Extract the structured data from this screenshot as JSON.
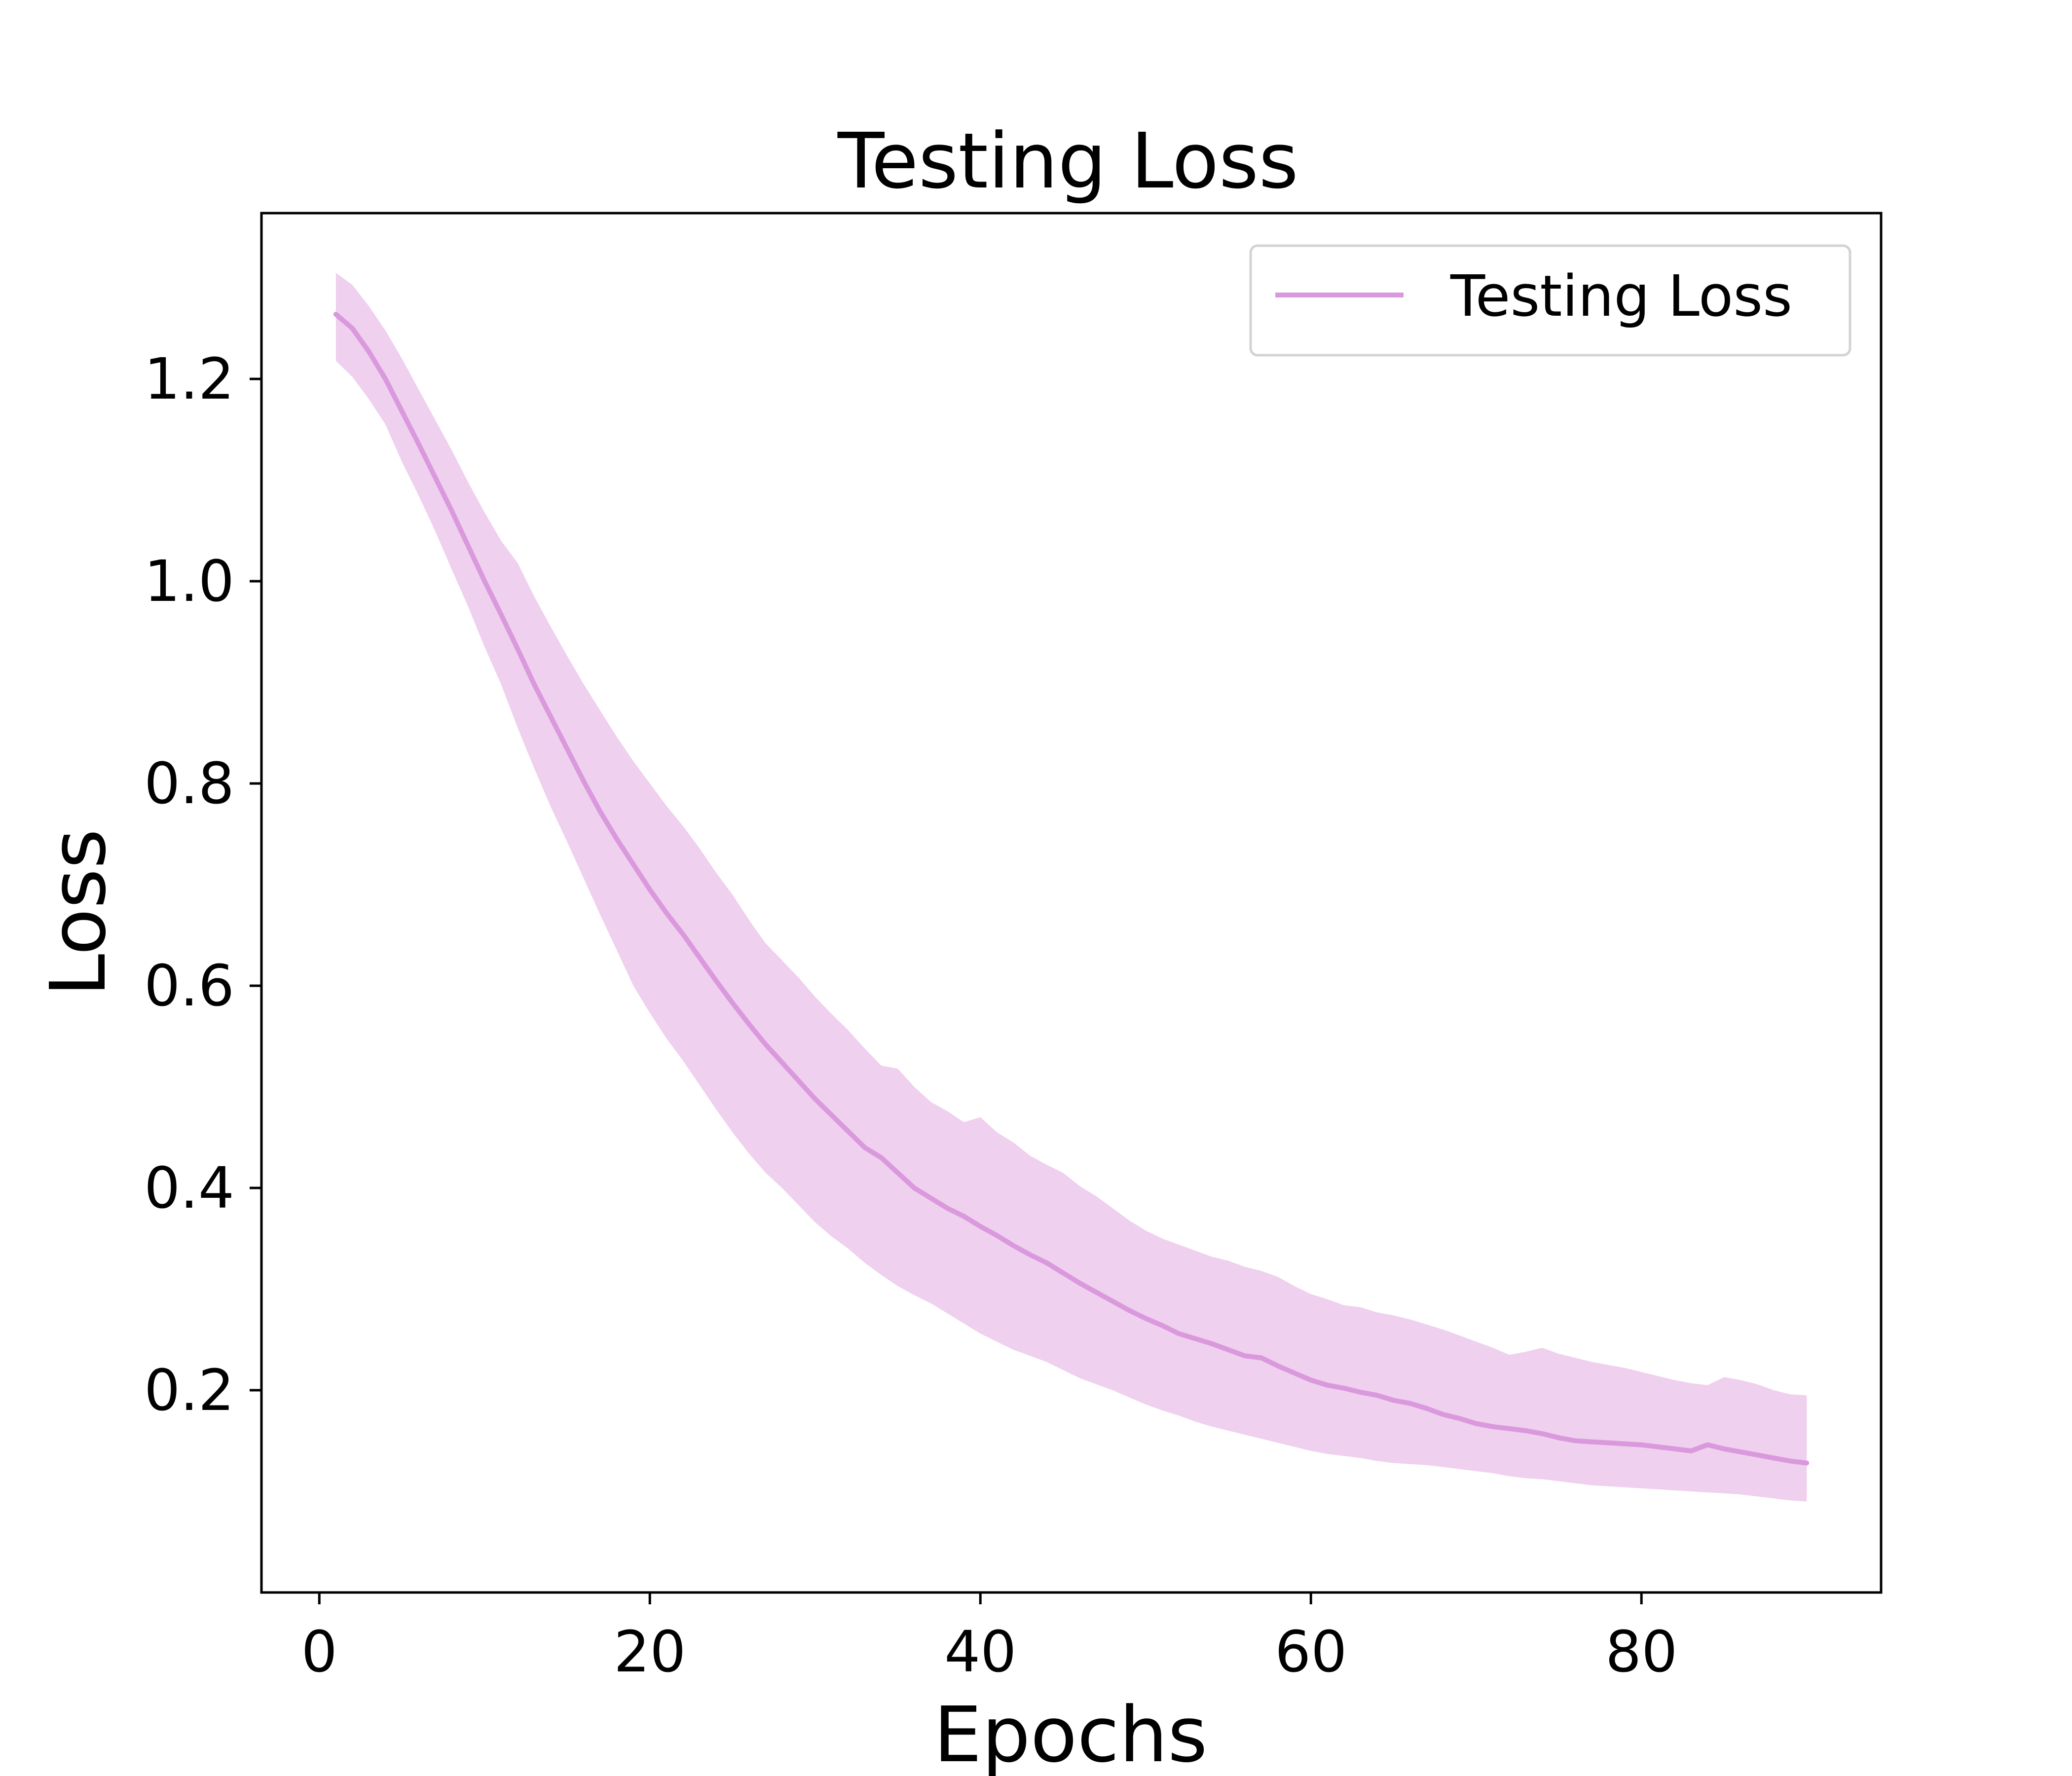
{
  "chart_data": {
    "type": "line",
    "title": "Testing Loss",
    "xlabel": "Epochs",
    "ylabel": "Loss",
    "xlim": [
      -3.5,
      94.5
    ],
    "ylim": [
      0.0,
      1.364
    ],
    "xticks": [
      0,
      20,
      40,
      60,
      80
    ],
    "xtick_labels": [
      "0",
      "20",
      "40",
      "60",
      "80"
    ],
    "yticks": [
      0.2,
      0.4,
      0.6,
      0.8,
      1.0,
      1.2
    ],
    "ytick_labels": [
      "0.2",
      "0.4",
      "0.6",
      "0.8",
      "1.0",
      "1.2"
    ],
    "grid": false,
    "legend": {
      "position": "top-right",
      "entries": [
        "Testing Loss"
      ]
    },
    "colors": {
      "line": "#da99dd",
      "band": "#efd0ee",
      "axes": "#000000",
      "legend_border": "#d3d3d3"
    },
    "series": [
      {
        "name": "Testing Loss",
        "x": [
          1,
          2,
          3,
          4,
          5,
          6,
          7,
          8,
          9,
          10,
          11,
          12,
          13,
          14,
          15,
          16,
          17,
          18,
          19,
          20,
          21,
          22,
          23,
          24,
          25,
          26,
          27,
          28,
          29,
          30,
          31,
          32,
          33,
          34,
          35,
          36,
          37,
          38,
          39,
          40,
          41,
          42,
          43,
          44,
          45,
          46,
          47,
          48,
          49,
          50,
          51,
          52,
          53,
          54,
          55,
          56,
          57,
          58,
          59,
          60,
          61,
          62,
          63,
          64,
          65,
          66,
          67,
          68,
          69,
          70,
          71,
          72,
          73,
          74,
          75,
          76,
          77,
          78,
          79,
          80,
          81,
          82,
          83,
          84,
          85,
          86,
          87,
          88,
          89,
          90
        ],
        "y": [
          1.264,
          1.25,
          1.227,
          1.2,
          1.168,
          1.136,
          1.103,
          1.07,
          1.035,
          1.0,
          0.967,
          0.933,
          0.898,
          0.866,
          0.834,
          0.802,
          0.772,
          0.745,
          0.72,
          0.695,
          0.672,
          0.651,
          0.628,
          0.605,
          0.583,
          0.562,
          0.542,
          0.524,
          0.506,
          0.488,
          0.472,
          0.456,
          0.44,
          0.43,
          0.415,
          0.4,
          0.39,
          0.38,
          0.372,
          0.362,
          0.353,
          0.343,
          0.334,
          0.326,
          0.316,
          0.306,
          0.297,
          0.288,
          0.279,
          0.271,
          0.264,
          0.256,
          0.251,
          0.246,
          0.24,
          0.234,
          0.232,
          0.224,
          0.217,
          0.21,
          0.205,
          0.202,
          0.198,
          0.195,
          0.19,
          0.187,
          0.182,
          0.176,
          0.172,
          0.167,
          0.164,
          0.162,
          0.16,
          0.157,
          0.153,
          0.15,
          0.149,
          0.148,
          0.147,
          0.146,
          0.144,
          0.142,
          0.14,
          0.146,
          0.142,
          0.139,
          0.136,
          0.133,
          0.13,
          0.128
        ],
        "upper": [
          1.305,
          1.293,
          1.272,
          1.248,
          1.22,
          1.19,
          1.16,
          1.13,
          1.098,
          1.068,
          1.04,
          1.018,
          0.985,
          0.955,
          0.926,
          0.898,
          0.872,
          0.846,
          0.822,
          0.8,
          0.778,
          0.758,
          0.736,
          0.712,
          0.69,
          0.665,
          0.642,
          0.625,
          0.608,
          0.589,
          0.572,
          0.556,
          0.538,
          0.521,
          0.518,
          0.5,
          0.485,
          0.476,
          0.465,
          0.47,
          0.455,
          0.445,
          0.432,
          0.423,
          0.415,
          0.402,
          0.392,
          0.38,
          0.368,
          0.358,
          0.35,
          0.344,
          0.338,
          0.332,
          0.328,
          0.322,
          0.318,
          0.312,
          0.303,
          0.295,
          0.29,
          0.284,
          0.282,
          0.277,
          0.274,
          0.27,
          0.265,
          0.26,
          0.254,
          0.248,
          0.242,
          0.235,
          0.238,
          0.242,
          0.236,
          0.232,
          0.228,
          0.225,
          0.222,
          0.218,
          0.214,
          0.21,
          0.207,
          0.205,
          0.213,
          0.21,
          0.206,
          0.2,
          0.196,
          0.195
        ],
        "lower": [
          1.218,
          1.202,
          1.18,
          1.155,
          1.118,
          1.085,
          1.05,
          1.012,
          0.975,
          0.935,
          0.898,
          0.855,
          0.815,
          0.777,
          0.742,
          0.706,
          0.67,
          0.635,
          0.6,
          0.573,
          0.548,
          0.526,
          0.502,
          0.478,
          0.455,
          0.434,
          0.415,
          0.4,
          0.383,
          0.366,
          0.352,
          0.34,
          0.326,
          0.314,
          0.303,
          0.294,
          0.286,
          0.276,
          0.266,
          0.256,
          0.248,
          0.24,
          0.234,
          0.228,
          0.22,
          0.212,
          0.206,
          0.2,
          0.193,
          0.186,
          0.18,
          0.175,
          0.169,
          0.164,
          0.16,
          0.156,
          0.152,
          0.148,
          0.144,
          0.14,
          0.137,
          0.135,
          0.133,
          0.13,
          0.128,
          0.127,
          0.126,
          0.124,
          0.122,
          0.12,
          0.118,
          0.115,
          0.113,
          0.112,
          0.11,
          0.108,
          0.106,
          0.105,
          0.104,
          0.103,
          0.102,
          0.101,
          0.1,
          0.099,
          0.098,
          0.097,
          0.095,
          0.093,
          0.091,
          0.09
        ]
      }
    ]
  }
}
